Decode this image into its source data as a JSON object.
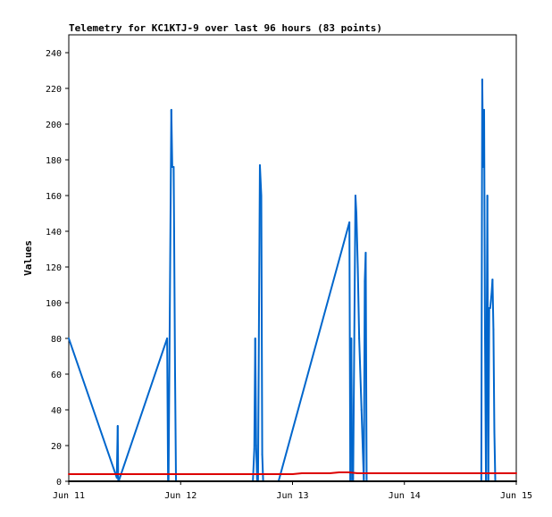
{
  "chart_data": {
    "type": "line",
    "title": "Telemetry for KC1KTJ-9 over last 96 hours (83 points)",
    "xlabel": "",
    "ylabel": "Values",
    "xlim": [
      0,
      96
    ],
    "ylim": [
      0,
      250
    ],
    "x_ticks": [
      {
        "x": 0,
        "label": "Jun 11"
      },
      {
        "x": 24,
        "label": "Jun 12"
      },
      {
        "x": 48,
        "label": "Jun 13"
      },
      {
        "x": 72,
        "label": "Jun 14"
      },
      {
        "x": 96,
        "label": "Jun 15"
      }
    ],
    "y_ticks": [
      0,
      20,
      40,
      60,
      80,
      100,
      120,
      140,
      160,
      180,
      200,
      220,
      240
    ],
    "grid": false,
    "legend": "none",
    "series": [
      {
        "color": "#0066cc",
        "x": [
          0.0,
          10.3,
          10.5,
          10.6,
          10.7,
          21.1,
          21.3,
          21.4,
          22.0,
          22.2,
          22.5,
          22.6,
          22.8,
          23.0,
          23.5,
          23.6,
          23.8,
          24.0,
          39.5,
          39.8,
          40.0,
          40.2,
          40.4,
          40.6,
          41.0,
          41.3,
          41.5,
          41.7,
          42.0,
          42.3,
          45.0,
          60.2,
          60.4,
          60.6,
          60.8,
          61.0,
          61.5,
          61.7,
          62.0,
          62.3,
          62.8,
          63.3,
          63.5,
          63.7,
          63.9,
          64.1,
          88.5,
          88.7,
          88.9,
          89.1,
          89.3,
          89.5,
          89.8,
          90.0,
          90.2,
          90.4,
          90.7,
          90.9,
          91.1,
          91.3,
          91.5
        ],
        "y": [
          80,
          2,
          31,
          1,
          0,
          80,
          0,
          0,
          208,
          176,
          176,
          140,
          60,
          0,
          0,
          0,
          0,
          0,
          0,
          18,
          80,
          20,
          0,
          0,
          177,
          160,
          15,
          0,
          0,
          0,
          0,
          145,
          0,
          80,
          0,
          0,
          160,
          150,
          120,
          80,
          40,
          0,
          112,
          128,
          0,
          0,
          0,
          225,
          176,
          208,
          80,
          0,
          160,
          0,
          97,
          97,
          105,
          113,
          85,
          28,
          0
        ]
      },
      {
        "color": "#dd0000",
        "x": [
          0,
          24,
          48,
          50,
          56,
          58,
          60,
          62,
          72,
          96
        ],
        "y": [
          4,
          4,
          4,
          4.5,
          4.5,
          5,
          5,
          4.5,
          4.5,
          4.5
        ]
      },
      {
        "color": "#000000",
        "x": [
          0,
          96
        ],
        "y": [
          0,
          0
        ]
      }
    ]
  }
}
